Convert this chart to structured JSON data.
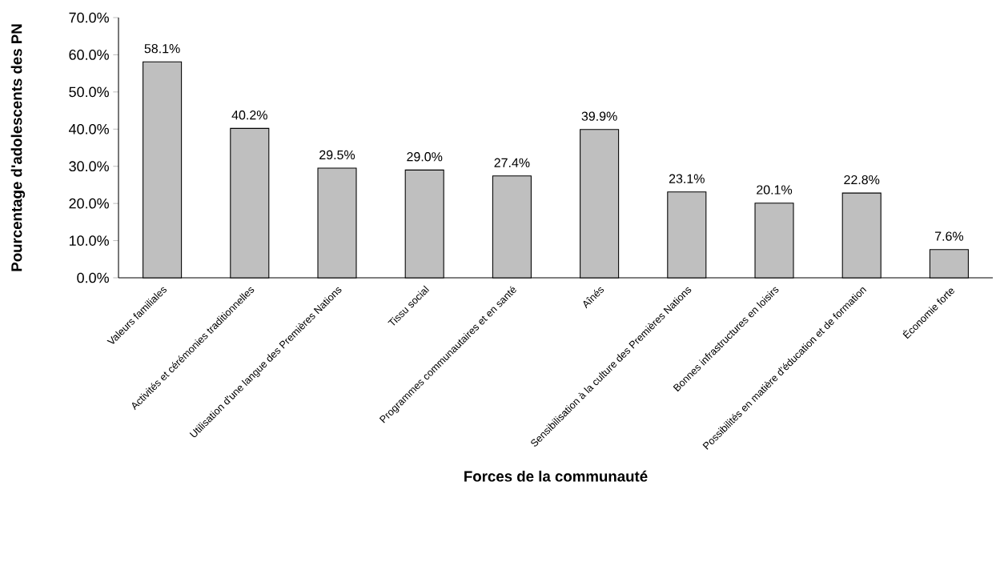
{
  "chart_data": {
    "type": "bar",
    "xlabel": "Forces de la communauté",
    "ylabel": "Pourcentage d'adolescents des PN",
    "categories": [
      "Valeurs familiales",
      "Activités et cérémonies traditionnelles",
      "Utilisation d'une langue des Premières Nations",
      "Tissu social",
      "Programmes communautaires et en santé",
      "Aînés",
      "Sensibilisation à la culture des Premières Nations",
      "Bonnes infrastructures en loisirs",
      "Possibilités en matière d'éducation et de formation",
      "Économie forte"
    ],
    "values": [
      58.1,
      40.2,
      29.5,
      29.0,
      27.4,
      39.9,
      23.1,
      20.1,
      22.8,
      7.6
    ],
    "value_labels": [
      "58.1%",
      "40.2%",
      "29.5%",
      "29.0%",
      "27.4%",
      "39.9%",
      "23.1%",
      "20.1%",
      "22.8%",
      "7.6%"
    ],
    "color": "#bfbfbf",
    "ylim": [
      0,
      70
    ],
    "yticks": [
      {
        "value": 0,
        "label": "0.0%"
      },
      {
        "value": 10,
        "label": "10.0%"
      },
      {
        "value": 20,
        "label": "20.0%"
      },
      {
        "value": 30,
        "label": "30.0%"
      },
      {
        "value": 40,
        "label": "40.0%"
      },
      {
        "value": 50,
        "label": "50.0%"
      },
      {
        "value": 60,
        "label": "60.0%"
      },
      {
        "value": 70,
        "label": "70.0%"
      }
    ],
    "grid": false
  }
}
